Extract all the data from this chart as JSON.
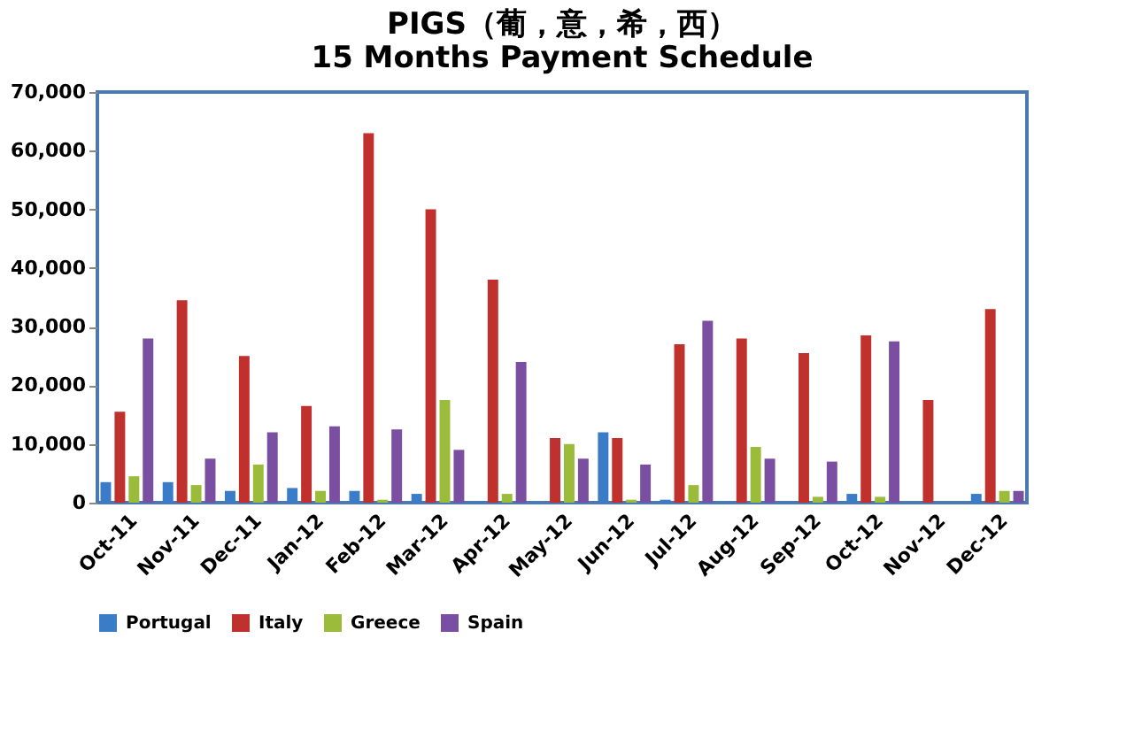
{
  "chart_data": {
    "type": "bar",
    "title": [
      "PIGS（葡，意，希，西）",
      "15 Months Payment Schedule"
    ],
    "categories": [
      "Oct-11",
      "Nov-11",
      "Dec-11",
      "Jan-12",
      "Feb-12",
      "Mar-12",
      "Apr-12",
      "May-12",
      "Jun-12",
      "Jul-12",
      "Aug-12",
      "Sep-12",
      "Oct-12",
      "Nov-12",
      "Dec-12"
    ],
    "series": [
      {
        "name": "Portugal",
        "color": "#3a7cc8",
        "values": [
          3500,
          3500,
          2000,
          2500,
          2000,
          1500,
          200,
          0,
          12000,
          500,
          0,
          200,
          1500,
          0,
          1500
        ]
      },
      {
        "name": "Italy",
        "color": "#c0302c",
        "values": [
          15500,
          34500,
          25000,
          16500,
          63000,
          50000,
          38000,
          11000,
          11000,
          27000,
          28000,
          25500,
          28500,
          17500,
          33000
        ]
      },
      {
        "name": "Greece",
        "color": "#9bbb3a",
        "values": [
          4500,
          3000,
          6500,
          2000,
          500,
          17500,
          1500,
          10000,
          500,
          3000,
          9500,
          1000,
          1000,
          0,
          2000
        ]
      },
      {
        "name": "Spain",
        "color": "#7a4ea0",
        "values": [
          28000,
          7500,
          12000,
          13000,
          12500,
          9000,
          24000,
          7500,
          6500,
          31000,
          7500,
          7000,
          27500,
          0,
          2000
        ]
      }
    ],
    "ylim": [
      0,
      70000
    ],
    "yticks": [
      {
        "value": 0,
        "label": "0"
      },
      {
        "value": 10000,
        "label": "10,000"
      },
      {
        "value": 20000,
        "label": "20,000"
      },
      {
        "value": 30000,
        "label": "30,000"
      },
      {
        "value": 40000,
        "label": "40,000"
      },
      {
        "value": 50000,
        "label": "50,000"
      },
      {
        "value": 60000,
        "label": "60,000"
      },
      {
        "value": 70000,
        "label": "70,000"
      }
    ],
    "grid": false,
    "legend": "bottom"
  }
}
